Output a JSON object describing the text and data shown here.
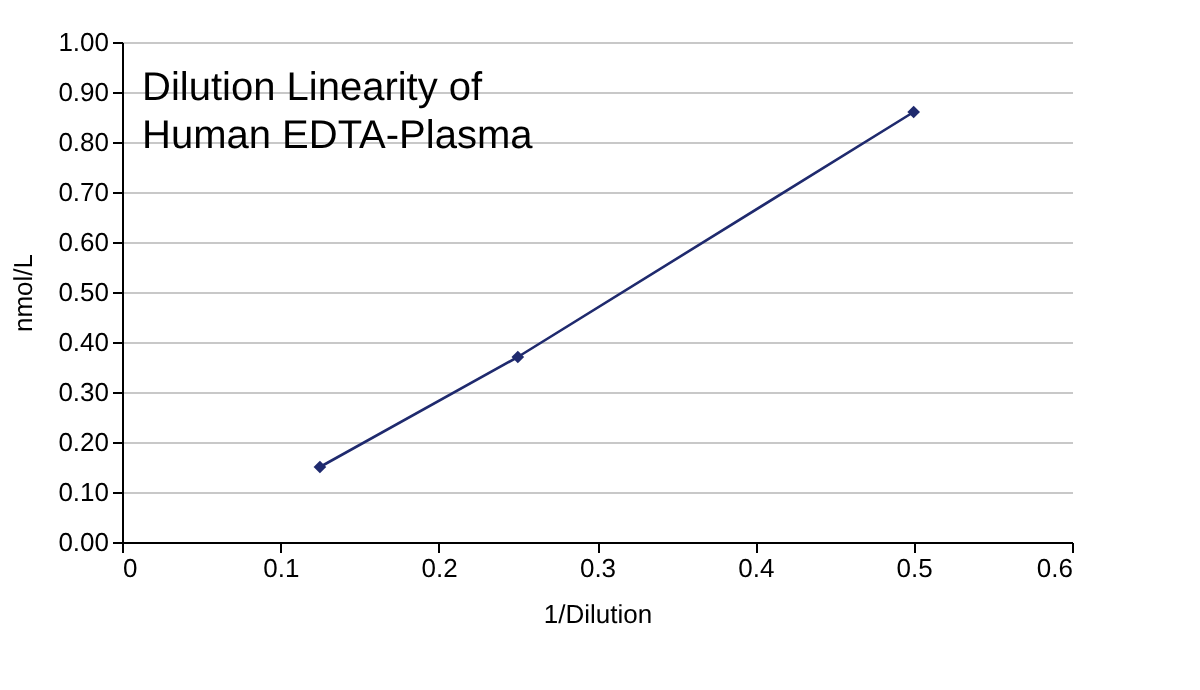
{
  "chart_data": {
    "type": "line",
    "title": "Dilution Linearity of Human EDTA-Plasma",
    "xlabel": "1/Dilution",
    "ylabel": "nmol/L",
    "x": [
      0.125,
      0.25,
      0.5
    ],
    "series": [
      {
        "color": "#1f2a6e",
        "values": [
          0.15,
          0.37,
          0.86
        ]
      }
    ],
    "xlim": [
      0,
      0.6
    ],
    "xticks": [
      0,
      0.1,
      0.2,
      0.3,
      0.4,
      0.5,
      0.6
    ],
    "ylim": [
      0,
      1.0
    ],
    "yticks": [
      {
        "value": 0,
        "label": "0.00"
      },
      {
        "value": 0.1,
        "label": "0.10"
      },
      {
        "value": 0.2,
        "label": "0.20"
      },
      {
        "value": 0.3,
        "label": "0.30"
      },
      {
        "value": 0.4,
        "label": "0.40"
      },
      {
        "value": 0.5,
        "label": "0.50"
      },
      {
        "value": 0.6,
        "label": "0.60"
      },
      {
        "value": 0.7,
        "label": "0.70"
      },
      {
        "value": 0.8,
        "label": "0.80"
      },
      {
        "value": 0.9,
        "label": "0.90"
      },
      {
        "value": 1.0,
        "label": "1.00"
      }
    ],
    "grid": "y",
    "marker": "diamond",
    "line_style": "solid"
  }
}
